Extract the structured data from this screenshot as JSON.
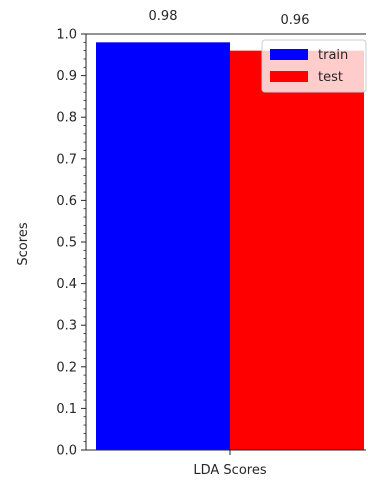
{
  "chart_data": {
    "type": "bar",
    "categories": [
      "LDA Scores"
    ],
    "series": [
      {
        "name": "train",
        "values": [
          0.98
        ],
        "color": "#0000ff",
        "data_label": "0.98"
      },
      {
        "name": "test",
        "values": [
          0.96
        ],
        "color": "#ff0000",
        "data_label": "0.96"
      }
    ],
    "title": "",
    "xlabel": "",
    "ylabel": "Scores",
    "ylim": [
      0,
      1.0
    ],
    "yticks": [
      "0.0",
      "0.1",
      "0.2",
      "0.3",
      "0.4",
      "0.5",
      "0.6",
      "0.7",
      "0.8",
      "0.9",
      "1.0"
    ],
    "grid": false,
    "legend": {
      "placement": "top-right",
      "entries": [
        "train",
        "test"
      ]
    }
  }
}
